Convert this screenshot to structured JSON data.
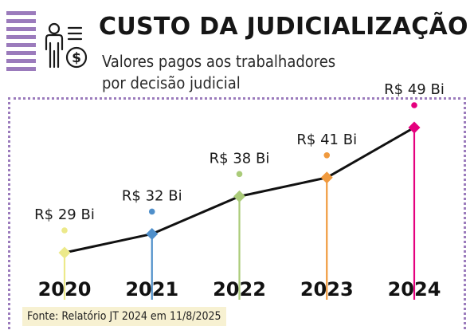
{
  "header": {
    "title": "CUSTO DA JUDICIALIZAÇÃO",
    "subtitle_line1": "Valores pagos aos trabalhadores",
    "subtitle_line2": "por decisão judicial",
    "icon": "person-money-icon"
  },
  "source": "Fonte: Relatório JT 2024 em 11/8/2025",
  "chart_data": {
    "type": "line",
    "categories": [
      "2020",
      "2021",
      "2022",
      "2023",
      "2024"
    ],
    "values": [
      29,
      32,
      38,
      41,
      49
    ],
    "value_labels": [
      "R$ 29 Bi",
      "R$ 32 Bi",
      "R$ 38 Bi",
      "R$ 41 Bi",
      "R$ 49 Bi"
    ],
    "colors": [
      "#ece98a",
      "#4f8fca",
      "#aacb79",
      "#f09a3e",
      "#e5007e"
    ],
    "line_color": "#111111",
    "unit": "R$ Bi",
    "grid": false,
    "legend": "none"
  },
  "colors": {
    "accent": "#9b7bbc",
    "source_bg": "#f7f1d2"
  }
}
